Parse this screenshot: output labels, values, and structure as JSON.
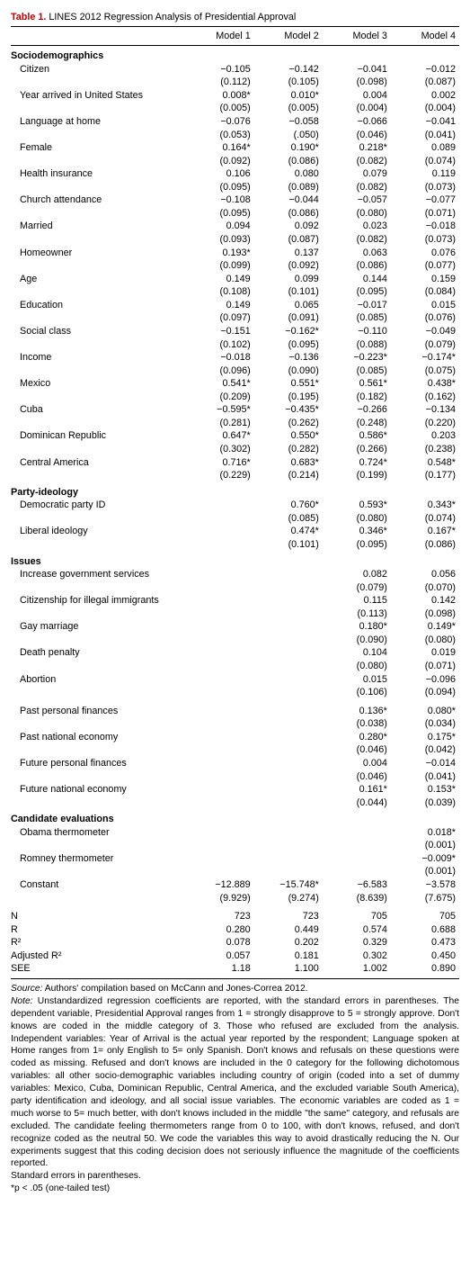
{
  "title_label": "Table 1.",
  "title_text": " LINES 2012 Regression Analysis of Presidential Approval",
  "col_headers": [
    "",
    "Model 1",
    "Model 2",
    "Model 3",
    "Model 4"
  ],
  "sections": [
    {
      "name": "Sociodemographics",
      "rows": [
        {
          "l": "Citizen",
          "c": [
            "−0.105",
            "−0.142",
            "−0.041",
            "−0.012"
          ],
          "s": [
            "(0.112)",
            "(0.105)",
            "(0.098)",
            "(0.087)"
          ]
        },
        {
          "l": "Year arrived in United States",
          "c": [
            "0.008*",
            "0.010*",
            "0.004",
            "0.002"
          ],
          "s": [
            "(0.005)",
            "(0.005)",
            "(0.004)",
            "(0.004)"
          ]
        },
        {
          "l": "Language at home",
          "c": [
            "−0.076",
            "−0.058",
            "−0.066",
            "−0.041"
          ],
          "s": [
            "(0.053)",
            "(.050)",
            "(0.046)",
            "(0.041)"
          ]
        },
        {
          "l": "Female",
          "c": [
            "0.164*",
            "0.190*",
            "0.218*",
            "0.089"
          ],
          "s": [
            "(0.092)",
            "(0.086)",
            "(0.082)",
            "(0.074)"
          ]
        },
        {
          "l": "Health insurance",
          "c": [
            "0.106",
            "0.080",
            "0.079",
            "0.119"
          ],
          "s": [
            "(0.095)",
            "(0.089)",
            "(0.082)",
            "(0.073)"
          ]
        },
        {
          "l": "Church attendance",
          "c": [
            "−0.108",
            "−0.044",
            "−0.057",
            "−0.077"
          ],
          "s": [
            "(0.095)",
            "(0.086)",
            "(0.080)",
            "(0.071)"
          ]
        },
        {
          "l": "Married",
          "c": [
            "0.094",
            "0.092",
            "0.023",
            "−0.018"
          ],
          "s": [
            "(0.093)",
            "(0.087)",
            "(0.082)",
            "(0.073)"
          ]
        },
        {
          "l": "Homeowner",
          "c": [
            "0.193*",
            "0.137",
            "0.063",
            "0.076"
          ],
          "s": [
            "(0.099)",
            "(0.092)",
            "(0.086)",
            "(0.077)"
          ]
        },
        {
          "l": "Age",
          "c": [
            "0.149",
            "0.099",
            "0.144",
            "0.159"
          ],
          "s": [
            "(0.108)",
            "(0.101)",
            "(0.095)",
            "(0.084)"
          ]
        },
        {
          "l": "Education",
          "c": [
            "0.149",
            "0.065",
            "−0.017",
            "0.015"
          ],
          "s": [
            "(0.097)",
            "(0.091)",
            "(0.085)",
            "(0.076)"
          ]
        },
        {
          "l": "Social class",
          "c": [
            "−0.151",
            "−0.162*",
            "−0.110",
            "−0.049"
          ],
          "s": [
            "(0.102)",
            "(0.095)",
            "(0.088)",
            "(0.079)"
          ]
        },
        {
          "l": "Income",
          "c": [
            "−0.018",
            "−0.136",
            "−0.223*",
            "−0.174*"
          ],
          "s": [
            "(0.096)",
            "(0.090)",
            "(0.085)",
            "(0.075)"
          ]
        },
        {
          "l": "Mexico",
          "c": [
            "0.541*",
            "0.551*",
            "0.561*",
            "0.438*"
          ],
          "s": [
            "(0.209)",
            "(0.195)",
            "(0.182)",
            "(0.162)"
          ]
        },
        {
          "l": "Cuba",
          "c": [
            "−0.595*",
            "−0.435*",
            "−0.266",
            "−0.134"
          ],
          "s": [
            "(0.281)",
            "(0.262)",
            "(0.248)",
            "(0.220)"
          ]
        },
        {
          "l": "Dominican Republic",
          "c": [
            "0.647*",
            "0.550*",
            "0.586*",
            "0.203"
          ],
          "s": [
            "(0.302)",
            "(0.282)",
            "(0.266)",
            "(0.238)"
          ]
        },
        {
          "l": "Central America",
          "c": [
            "0.716*",
            "0.683*",
            "0.724*",
            "0.548*"
          ],
          "s": [
            "(0.229)",
            "(0.214)",
            "(0.199)",
            "(0.177)"
          ]
        }
      ]
    },
    {
      "name": "Party-ideology",
      "rows": [
        {
          "l": "Democratic party ID",
          "c": [
            "",
            "0.760*",
            "0.593*",
            "0.343*"
          ],
          "s": [
            "",
            "(0.085)",
            "(0.080)",
            "(0.074)"
          ]
        },
        {
          "l": "Liberal ideology",
          "c": [
            "",
            "0.474*",
            "0.346*",
            "0.167*"
          ],
          "s": [
            "",
            "(0.101)",
            "(0.095)",
            "(0.086)"
          ]
        }
      ]
    },
    {
      "name": "Issues",
      "rows": [
        {
          "l": "Increase government services",
          "c": [
            "",
            "",
            "0.082",
            "0.056"
          ],
          "s": [
            "",
            "",
            "(0.079)",
            "(0.070)"
          ]
        },
        {
          "l": "Citizenship for illegal immigrants",
          "c": [
            "",
            "",
            "0.115",
            "0.142"
          ],
          "s": [
            "",
            "",
            "(0.113)",
            "(0.098)"
          ]
        },
        {
          "l": "Gay marriage",
          "c": [
            "",
            "",
            "0.180*",
            "0.149*"
          ],
          "s": [
            "",
            "",
            "(0.090)",
            "(0.080)"
          ]
        },
        {
          "l": "Death penalty",
          "c": [
            "",
            "",
            "0.104",
            "0.019"
          ],
          "s": [
            "",
            "",
            "(0.080)",
            "(0.071)"
          ]
        },
        {
          "l": "Abortion",
          "c": [
            "",
            "",
            "0.015",
            "−0.096"
          ],
          "s": [
            "",
            "",
            "(0.106)",
            "(0.094)"
          ]
        }
      ]
    },
    {
      "name": "",
      "rows": [
        {
          "l": "Past personal finances",
          "c": [
            "",
            "",
            "0.136*",
            "0.080*"
          ],
          "s": [
            "",
            "",
            "(0.038)",
            "(0.034)"
          ]
        },
        {
          "l": "Past national economy",
          "c": [
            "",
            "",
            "0.280*",
            "0.175*"
          ],
          "s": [
            "",
            "",
            "(0.046)",
            "(0.042)"
          ]
        },
        {
          "l": "Future personal finances",
          "c": [
            "",
            "",
            "0.004",
            "−0.014"
          ],
          "s": [
            "",
            "",
            "(0.046)",
            "(0.041)"
          ]
        },
        {
          "l": "Future national economy",
          "c": [
            "",
            "",
            "0.161*",
            "0.153*"
          ],
          "s": [
            "",
            "",
            "(0.044)",
            "(0.039)"
          ]
        }
      ]
    },
    {
      "name": "Candidate evaluations",
      "rows": [
        {
          "l": "Obama thermometer",
          "c": [
            "",
            "",
            "",
            "0.018*"
          ],
          "s": [
            "",
            "",
            "",
            "(0.001)"
          ]
        },
        {
          "l": "Romney thermometer",
          "c": [
            "",
            "",
            "",
            "−0.009*"
          ],
          "s": [
            "",
            "",
            "",
            "(0.001)"
          ]
        },
        {
          "l": "Constant",
          "c": [
            "−12.889",
            "−15.748*",
            "−6.583",
            "−3.578"
          ],
          "s": [
            "(9.929)",
            "(9.274)",
            "(8.639)",
            "(7.675)"
          ]
        }
      ]
    },
    {
      "name": "",
      "rows": [
        {
          "l": "N",
          "c": [
            "723",
            "723",
            "705",
            "705"
          ]
        },
        {
          "l": "R",
          "c": [
            "0.280",
            "0.449",
            "0.574",
            "0.688"
          ]
        },
        {
          "l": "R²",
          "c": [
            "0.078",
            "0.202",
            "0.329",
            "0.473"
          ]
        },
        {
          "l": "Adjusted R²",
          "c": [
            "0.057",
            "0.181",
            "0.302",
            "0.450"
          ]
        },
        {
          "l": "SEE",
          "c": [
            "1.18",
            "1.100",
            "1.002",
            "0.890"
          ]
        }
      ]
    }
  ],
  "footer": {
    "source_label": "Source:",
    "source_text": " Authors' compilation based on McCann and Jones-Correa 2012.",
    "note_label": "Note:",
    "note_text": " Unstandardized regression coefficients are reported, with the standard errors in parentheses. The dependent variable, Presidential Approval ranges from 1 = strongly disapprove to 5 = strongly approve. Don't knows are coded in the middle category of 3. Those who refused are excluded from the analysis. Independent variables: Year of Arrival is the actual year reported by the respondent; Language spoken at Home ranges from 1= only English to 5= only Spanish. Don't knows and refusals on these questions were coded as missing. Refused and don't knows are included in the 0 category for the following dichotomous variables: all other socio-demographic variables including country of origin (coded into a set of dummy variables: Mexico, Cuba, Dominican Republic, Central America, and the excluded variable South America), party identification and ideology, and all social issue variables. The economic variables are coded as 1 = much worse to 5= much better, with don't knows included in the middle \"the same\" category, and refusals are excluded. The candidate feeling thermometers range from 0 to 100, with don't knows, refused, and don't recognize coded as the neutral 50. We code the variables this way to avoid drastically reducing the N. Our experiments suggest that this coding decision does not seriously influence the magnitude of the coefficients reported.",
    "se_note": "Standard errors in parentheses.",
    "p_note": "*p < .05 (one-tailed test)"
  }
}
